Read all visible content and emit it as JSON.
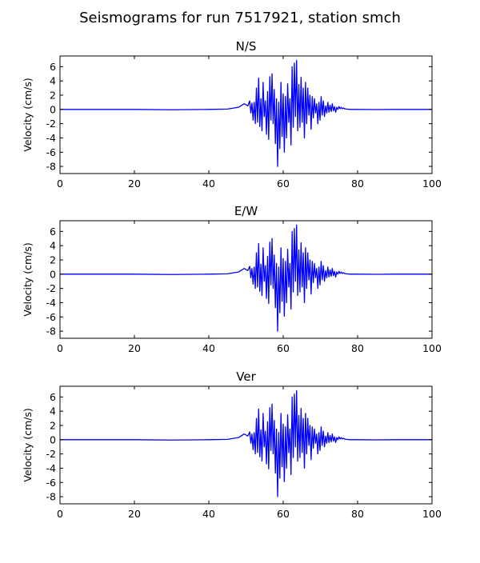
{
  "figure": {
    "title": "Seismograms for run 7517921, station smch"
  },
  "chart_data": [
    {
      "type": "line",
      "title": "N/S",
      "xlabel": "",
      "ylabel": "Velocity (cm/s)",
      "xlim": [
        0,
        100
      ],
      "ylim": [
        -9,
        7.5
      ],
      "xticks": [
        0,
        20,
        40,
        60,
        80,
        100
      ],
      "yticks": [
        -8,
        -6,
        -4,
        -2,
        0,
        2,
        4,
        6
      ],
      "grid": false,
      "line_color": "#0000ff",
      "series": [
        {
          "x": [
            0,
            20,
            30,
            40,
            45,
            48,
            49.5,
            50.5,
            51,
            51.3,
            51.6,
            51.9,
            52.2,
            52.5,
            52.8,
            53.1,
            53.4,
            53.7,
            54.0,
            54.3,
            54.6,
            54.9,
            55.2,
            55.5,
            55.8,
            56.1,
            56.4,
            56.7,
            57.0,
            57.3,
            57.6,
            57.9,
            58.2,
            58.5,
            58.8,
            59.1,
            59.4,
            59.7,
            60.0,
            60.3,
            60.6,
            60.9,
            61.2,
            61.5,
            61.8,
            62.1,
            62.4,
            62.7,
            63.0,
            63.3,
            63.6,
            63.9,
            64.2,
            64.5,
            64.8,
            65.1,
            65.4,
            65.7,
            66.0,
            66.3,
            66.6,
            66.9,
            67.2,
            67.5,
            67.8,
            68.1,
            68.4,
            68.7,
            69.0,
            69.3,
            69.6,
            69.9,
            70.2,
            70.5,
            70.8,
            71.1,
            71.4,
            71.7,
            72.0,
            72.3,
            72.6,
            72.9,
            73.2,
            73.5,
            73.8,
            74.1,
            74.4,
            74.7,
            75.0,
            75.3,
            75.6,
            75.9,
            76.2,
            76.5,
            77,
            78,
            80,
            85,
            90,
            100
          ],
          "y": [
            0,
            0,
            -0.05,
            0,
            0.05,
            0.3,
            0.8,
            0.5,
            1.2,
            -0.5,
            0.9,
            -1.5,
            1.0,
            -2.0,
            3.0,
            -1.8,
            4.4,
            -2.4,
            1.5,
            -3.0,
            3.8,
            -1.0,
            1.2,
            -3.5,
            2.5,
            -4.2,
            4.6,
            -1.5,
            5.0,
            -2.0,
            2.8,
            -4.8,
            1.5,
            -8.0,
            1.0,
            -5.5,
            3.8,
            -3.8,
            2.2,
            -6.0,
            1.8,
            -4.0,
            3.6,
            -1.8,
            1.5,
            -5.0,
            6.0,
            -2.5,
            6.5,
            -1.0,
            6.9,
            -3.0,
            3.5,
            -2.5,
            4.5,
            -1.8,
            3.0,
            -4.0,
            3.8,
            -2.0,
            3.0,
            -0.8,
            2.0,
            -2.8,
            1.8,
            -1.2,
            1.5,
            -0.5,
            0.8,
            -2.0,
            1.0,
            -1.5,
            1.8,
            -0.8,
            1.2,
            -1.0,
            0.5,
            -0.5,
            1.0,
            -0.4,
            0.6,
            -0.3,
            0.8,
            -0.2,
            0.4,
            -0.4,
            0.3,
            0.0,
            0.4,
            0.1,
            0.3,
            0.1,
            0.2,
            0.1,
            0.05,
            0,
            0,
            -0.02,
            0,
            0
          ]
        }
      ]
    },
    {
      "type": "line",
      "title": "E/W",
      "xlabel": "",
      "ylabel": "Velocity (cm/s)",
      "xlim": [
        0,
        100
      ],
      "ylim": [
        -9,
        7.5
      ],
      "xticks": [
        0,
        20,
        40,
        60,
        80,
        100
      ],
      "yticks": [
        -8,
        -6,
        -4,
        -2,
        0,
        2,
        4,
        6
      ],
      "grid": false,
      "line_color": "#0000ff",
      "series": [
        {
          "x": [
            0,
            20,
            30,
            40,
            45,
            48,
            49.5,
            50.5,
            51,
            51.3,
            51.6,
            51.9,
            52.2,
            52.5,
            52.8,
            53.1,
            53.4,
            53.7,
            54.0,
            54.3,
            54.6,
            54.9,
            55.2,
            55.5,
            55.8,
            56.1,
            56.4,
            56.7,
            57.0,
            57.3,
            57.6,
            57.9,
            58.2,
            58.5,
            58.8,
            59.1,
            59.4,
            59.7,
            60.0,
            60.3,
            60.6,
            60.9,
            61.2,
            61.5,
            61.8,
            62.1,
            62.4,
            62.7,
            63.0,
            63.3,
            63.6,
            63.9,
            64.2,
            64.5,
            64.8,
            65.1,
            65.4,
            65.7,
            66.0,
            66.3,
            66.6,
            66.9,
            67.2,
            67.5,
            67.8,
            68.1,
            68.4,
            68.7,
            69.0,
            69.3,
            69.6,
            69.9,
            70.2,
            70.5,
            70.8,
            71.1,
            71.4,
            71.7,
            72.0,
            72.3,
            72.6,
            72.9,
            73.2,
            73.5,
            73.8,
            74.1,
            74.4,
            74.7,
            75.0,
            75.3,
            75.6,
            75.9,
            76.2,
            76.5,
            77,
            78,
            80,
            85,
            90,
            100
          ],
          "y": [
            0,
            0,
            -0.05,
            0,
            0.05,
            0.3,
            0.8,
            0.5,
            1.1,
            -0.5,
            0.8,
            -1.4,
            1.0,
            -2.0,
            3.0,
            -1.8,
            4.3,
            -2.4,
            1.4,
            -3.0,
            3.7,
            -1.0,
            1.2,
            -3.4,
            2.5,
            -4.1,
            4.5,
            -1.5,
            5.0,
            -2.0,
            2.7,
            -4.7,
            1.5,
            -8.0,
            1.0,
            -5.4,
            3.7,
            -3.8,
            2.2,
            -5.9,
            1.8,
            -4.0,
            3.5,
            -1.8,
            1.5,
            -4.9,
            6.0,
            -2.5,
            6.4,
            -1.0,
            6.9,
            -3.0,
            3.4,
            -2.5,
            4.4,
            -1.8,
            3.0,
            -4.0,
            3.7,
            -2.0,
            3.0,
            -0.8,
            2.0,
            -2.8,
            1.8,
            -1.2,
            1.5,
            -0.5,
            0.8,
            -2.0,
            1.0,
            -1.5,
            1.8,
            -0.8,
            1.2,
            -1.0,
            0.5,
            -0.5,
            1.0,
            -0.4,
            0.6,
            -0.3,
            0.8,
            -0.2,
            0.4,
            -0.4,
            0.3,
            0.0,
            0.4,
            0.1,
            0.3,
            0.1,
            0.2,
            0.1,
            0.05,
            0,
            0,
            -0.02,
            0,
            0
          ]
        }
      ]
    },
    {
      "type": "line",
      "title": "Ver",
      "xlabel": "",
      "ylabel": "Velocity (cm/s)",
      "xlim": [
        0,
        100
      ],
      "ylim": [
        -9,
        7.5
      ],
      "xticks": [
        0,
        20,
        40,
        60,
        80,
        100
      ],
      "yticks": [
        -8,
        -6,
        -4,
        -2,
        0,
        2,
        4,
        6
      ],
      "grid": false,
      "line_color": "#0000ff",
      "series": [
        {
          "x": [
            0,
            20,
            30,
            40,
            45,
            48,
            49.5,
            50.5,
            51,
            51.3,
            51.6,
            51.9,
            52.2,
            52.5,
            52.8,
            53.1,
            53.4,
            53.7,
            54.0,
            54.3,
            54.6,
            54.9,
            55.2,
            55.5,
            55.8,
            56.1,
            56.4,
            56.7,
            57.0,
            57.3,
            57.6,
            57.9,
            58.2,
            58.5,
            58.8,
            59.1,
            59.4,
            59.7,
            60.0,
            60.3,
            60.6,
            60.9,
            61.2,
            61.5,
            61.8,
            62.1,
            62.4,
            62.7,
            63.0,
            63.3,
            63.6,
            63.9,
            64.2,
            64.5,
            64.8,
            65.1,
            65.4,
            65.7,
            66.0,
            66.3,
            66.6,
            66.9,
            67.2,
            67.5,
            67.8,
            68.1,
            68.4,
            68.7,
            69.0,
            69.3,
            69.6,
            69.9,
            70.2,
            70.5,
            70.8,
            71.1,
            71.4,
            71.7,
            72.0,
            72.3,
            72.6,
            72.9,
            73.2,
            73.5,
            73.8,
            74.1,
            74.4,
            74.7,
            75.0,
            75.3,
            75.6,
            75.9,
            76.2,
            76.5,
            77,
            78,
            80,
            85,
            90,
            100
          ],
          "y": [
            0,
            0,
            -0.05,
            0,
            0.05,
            0.3,
            0.8,
            0.5,
            1.1,
            -0.5,
            0.8,
            -1.4,
            1.0,
            -2.0,
            3.0,
            -1.8,
            4.3,
            -2.4,
            1.4,
            -3.0,
            3.7,
            -1.0,
            1.2,
            -3.4,
            2.5,
            -4.1,
            4.5,
            -1.5,
            5.0,
            -2.0,
            2.7,
            -4.7,
            1.5,
            -8.0,
            1.0,
            -5.4,
            3.7,
            -3.8,
            2.2,
            -5.9,
            1.8,
            -4.0,
            3.5,
            -1.8,
            1.5,
            -4.9,
            6.0,
            -2.5,
            6.4,
            -1.0,
            6.9,
            -3.0,
            3.4,
            -2.5,
            4.4,
            -1.8,
            3.0,
            -4.0,
            3.7,
            -2.0,
            3.0,
            -0.8,
            2.0,
            -2.8,
            1.8,
            -1.2,
            1.5,
            -0.5,
            0.8,
            -2.0,
            1.0,
            -1.5,
            1.8,
            -0.8,
            1.2,
            -1.0,
            0.5,
            -0.5,
            1.0,
            -0.4,
            0.6,
            -0.3,
            0.8,
            -0.2,
            0.4,
            -0.4,
            0.3,
            0.0,
            0.4,
            0.1,
            0.3,
            0.1,
            0.2,
            0.1,
            0.05,
            0,
            0,
            -0.02,
            0,
            0
          ]
        }
      ]
    }
  ]
}
